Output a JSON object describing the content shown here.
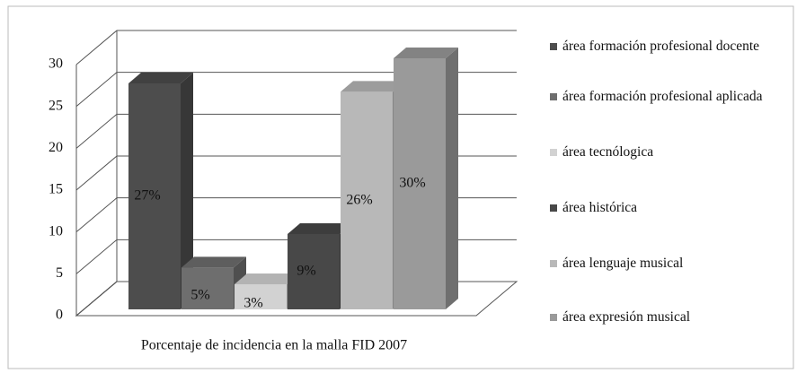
{
  "chart_data": {
    "type": "bar3d",
    "categories": [
      "Porcentaje de incidencia en la malla FID 2007"
    ],
    "series": [
      {
        "name": "área formación profesional docente",
        "color": "#4d4d4d",
        "values": [
          27
        ],
        "value_labels": [
          "27%"
        ]
      },
      {
        "name": "área formación profesional aplicada",
        "color": "#6e6e6e",
        "values": [
          5
        ],
        "value_labels": [
          "5%"
        ]
      },
      {
        "name": "área tecnólogica",
        "color": "#d2d2d2",
        "values": [
          3
        ],
        "value_labels": [
          "3%"
        ]
      },
      {
        "name": "área histórica",
        "color": "#484848",
        "values": [
          9
        ],
        "value_labels": [
          "9%"
        ]
      },
      {
        "name": "área lenguaje musical",
        "color": "#b8b8b8",
        "values": [
          26
        ],
        "value_labels": [
          "26%"
        ]
      },
      {
        "name": "área expresión musical",
        "color": "#9a9a9a",
        "values": [
          30
        ],
        "value_labels": [
          "30%"
        ]
      }
    ],
    "ylim": [
      0,
      30
    ],
    "yticks": [
      0,
      5,
      10,
      15,
      20,
      25,
      30
    ],
    "grid": true,
    "legend": "right"
  }
}
